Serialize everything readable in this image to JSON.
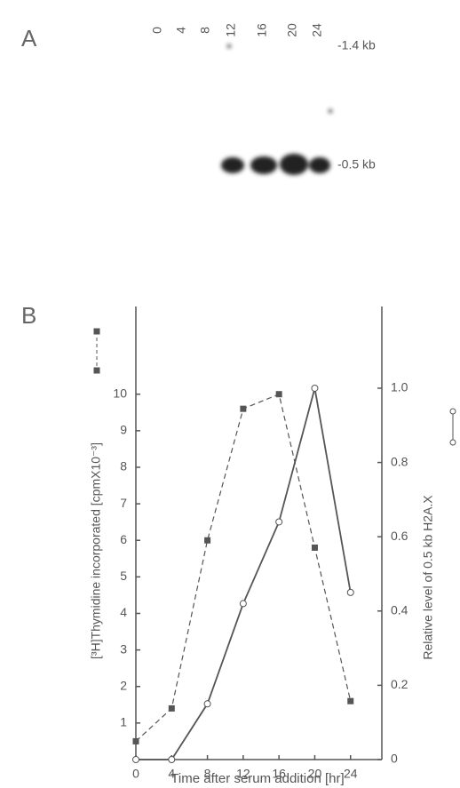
{
  "panels": [
    "A",
    "B"
  ],
  "blot": {
    "lanes": [
      "0",
      "4",
      "8",
      "12",
      "16",
      "20",
      "24"
    ],
    "markers": [
      "-1.4 kb",
      "-0.5 kb"
    ]
  },
  "chart_data": {
    "type": "line",
    "x_label": "Time after serum addition [hr]",
    "y_label": "[³H]Thymidine incorporated [cpmX10⁻³]",
    "y2_label": "Relative level of 0.5 kb H2A.X",
    "xlim": [
      0,
      27.5
    ],
    "xticks": [
      0,
      4,
      8,
      12,
      16,
      20,
      24
    ],
    "ylim": [
      0,
      12.4
    ],
    "yticks": [
      1,
      2,
      3,
      4,
      5,
      6,
      7,
      8,
      9,
      10
    ],
    "y2lim": [
      0,
      1.22
    ],
    "y2ticks": [
      0,
      0.2,
      0.4,
      0.6,
      0.8,
      {
        "value": 1,
        "label": "1.0"
      }
    ],
    "series": [
      {
        "color": "#555555",
        "marker": "square",
        "dashed": true,
        "axis": "y",
        "x": [
          0,
          4,
          8,
          12,
          16,
          20,
          24
        ],
        "values": [
          0.5,
          1.4,
          6,
          9.6,
          10,
          5.8,
          1.6
        ]
      },
      {
        "color": "#555555",
        "marker": "circle",
        "dashed": false,
        "axis": "y2",
        "x": [
          0,
          4,
          8,
          12,
          16,
          20,
          24
        ],
        "values": [
          0,
          0,
          0.15,
          0.42,
          0.64,
          1.0,
          0.45
        ]
      }
    ]
  }
}
